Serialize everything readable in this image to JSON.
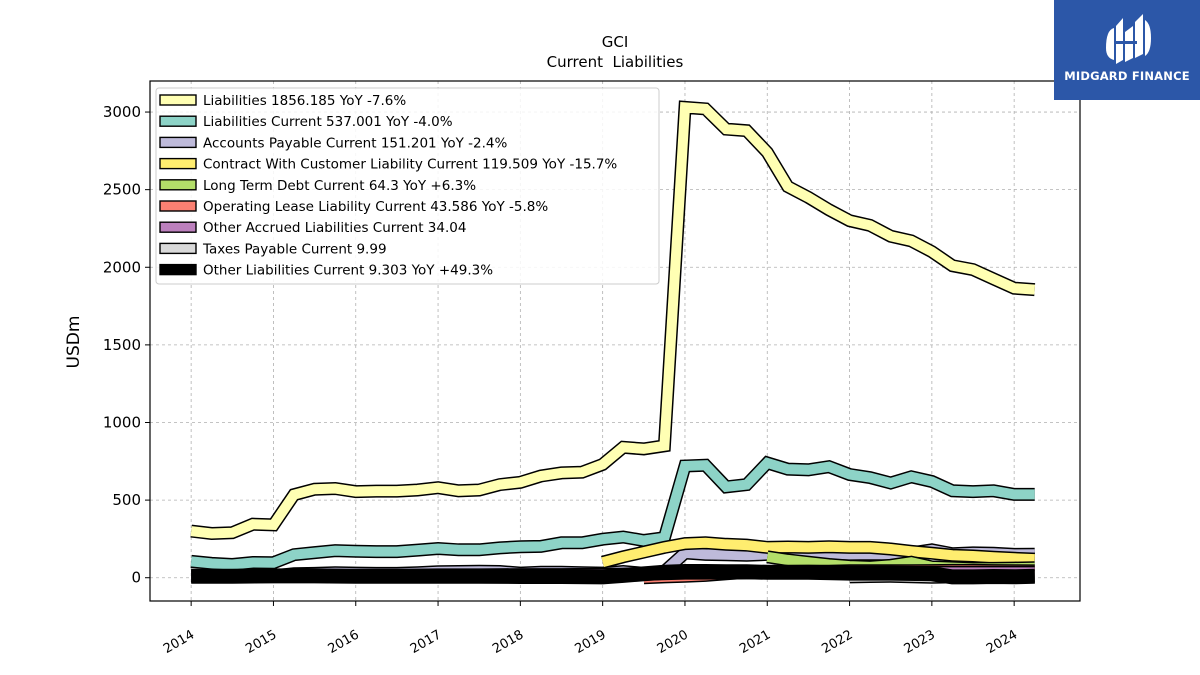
{
  "brand": {
    "name": "MIDGARD FINANCE",
    "logo_icon": "midgard-logo-icon",
    "background": "#2c57a8"
  },
  "chart_data": {
    "type": "line",
    "title": "GCI",
    "subtitle": "Current  Liabilities",
    "ylabel": "USDm",
    "xlabel": "",
    "ylim": [
      -150,
      3200
    ],
    "xlim": [
      2013.5,
      2024.8
    ],
    "yticks": [
      0,
      500,
      1000,
      1500,
      2000,
      2500,
      3000
    ],
    "xticks": [
      2014,
      2015,
      2016,
      2017,
      2018,
      2019,
      2020,
      2021,
      2022,
      2023,
      2024
    ],
    "grid": true,
    "legend_position": "top-left",
    "series": [
      {
        "name": "Liabilities  1856.185 YoY -7.6%",
        "color": "#ffffb3",
        "width": 10,
        "x": [
          2014.0,
          2014.25,
          2014.5,
          2014.75,
          2015.0,
          2015.25,
          2015.5,
          2015.75,
          2016.0,
          2016.25,
          2016.5,
          2016.75,
          2017.0,
          2017.25,
          2017.5,
          2017.75,
          2018.0,
          2018.25,
          2018.5,
          2018.75,
          2019.0,
          2019.25,
          2019.5,
          2019.75,
          2020.0,
          2020.25,
          2020.5,
          2020.75,
          2021.0,
          2021.25,
          2021.5,
          2021.75,
          2022.0,
          2022.25,
          2022.5,
          2022.75,
          2023.0,
          2023.25,
          2023.5,
          2023.75,
          2024.0,
          2024.25
        ],
        "y": [
          300,
          285,
          290,
          345,
          340,
          535,
          570,
          575,
          555,
          558,
          558,
          565,
          580,
          560,
          565,
          600,
          615,
          655,
          675,
          680,
          730,
          840,
          830,
          850,
          3030,
          3020,
          2890,
          2880,
          2740,
          2520,
          2450,
          2370,
          2300,
          2270,
          2200,
          2170,
          2100,
          2010,
          1985,
          1925,
          1865,
          1856
        ]
      },
      {
        "name": "Liabilities Current  537.001 YoY -4.0%",
        "color": "#8dd3c7",
        "width": 10,
        "x": [
          2014.0,
          2014.25,
          2014.5,
          2014.75,
          2015.0,
          2015.25,
          2015.5,
          2015.75,
          2016.0,
          2016.25,
          2016.5,
          2016.75,
          2017.0,
          2017.25,
          2017.5,
          2017.75,
          2018.0,
          2018.25,
          2018.5,
          2018.75,
          2019.0,
          2019.25,
          2019.5,
          2019.75,
          2020.0,
          2020.25,
          2020.5,
          2020.75,
          2021.0,
          2021.25,
          2021.5,
          2021.75,
          2022.0,
          2022.25,
          2022.5,
          2022.75,
          2023.0,
          2023.25,
          2023.5,
          2023.75,
          2024.0,
          2024.25
        ],
        "y": [
          105,
          92,
          85,
          98,
          97,
          148,
          162,
          175,
          170,
          168,
          168,
          178,
          188,
          180,
          180,
          192,
          200,
          202,
          225,
          225,
          248,
          262,
          240,
          258,
          720,
          725,
          585,
          600,
          740,
          700,
          695,
          715,
          665,
          645,
          610,
          650,
          620,
          560,
          555,
          560,
          537,
          537
        ]
      },
      {
        "name": "Accounts Payable Current  151.201 YoY -2.4%",
        "color": "#bebada",
        "width": 10,
        "x": [
          2014.0,
          2014.25,
          2014.5,
          2014.75,
          2015.0,
          2015.25,
          2015.5,
          2015.75,
          2016.0,
          2016.25,
          2016.5,
          2016.75,
          2017.0,
          2017.25,
          2017.5,
          2017.75,
          2018.0,
          2018.25,
          2018.5,
          2018.75,
          2019.0,
          2019.25,
          2019.5,
          2019.75,
          2020.0,
          2020.25,
          2020.5,
          2020.75,
          2021.0,
          2021.25,
          2021.5,
          2021.75,
          2022.0,
          2022.25,
          2022.5,
          2022.75,
          2023.0,
          2023.25,
          2023.5,
          2023.75,
          2024.0,
          2024.25
        ],
        "y": [
          15,
          12,
          10,
          14,
          12,
          25,
          28,
          32,
          30,
          28,
          28,
          32,
          38,
          40,
          42,
          40,
          30,
          35,
          35,
          32,
          30,
          40,
          28,
          40,
          160,
          150,
          148,
          145,
          150,
          150,
          145,
          155,
          150,
          152,
          150,
          160,
          180,
          155,
          160,
          158,
          150,
          151
        ]
      },
      {
        "name": "Contract With Customer Liability Current  119.509 YoY -15.7%",
        "color": "#ffed6f",
        "width": 10,
        "x": [
          2019.0,
          2019.25,
          2019.5,
          2019.75,
          2020.0,
          2020.25,
          2020.5,
          2020.75,
          2021.0,
          2021.25,
          2021.5,
          2021.75,
          2022.0,
          2022.25,
          2022.5,
          2022.75,
          2023.0,
          2023.25,
          2023.5,
          2023.75,
          2024.0,
          2024.25
        ],
        "y": [
          100,
          135,
          165,
          195,
          220,
          225,
          215,
          210,
          195,
          198,
          195,
          200,
          195,
          195,
          185,
          170,
          158,
          145,
          140,
          132,
          125,
          120
        ]
      },
      {
        "name": "Long Term Debt Current  64.3 YoY +6.3%",
        "color": "#b3de69",
        "width": 10,
        "x": [
          2021.0,
          2021.25,
          2021.5,
          2021.75,
          2022.0,
          2022.25,
          2022.5,
          2022.75,
          2023.0,
          2023.25,
          2023.5,
          2023.75,
          2024.0,
          2024.25
        ],
        "y": [
          135,
          115,
          100,
          85,
          75,
          70,
          80,
          100,
          70,
          65,
          60,
          60,
          62,
          64
        ]
      },
      {
        "name": "Operating Lease Liability Current  43.586 YoY -5.8%",
        "color": "#fb8072",
        "width": 10,
        "x": [
          2019.5,
          2019.75,
          2020.0,
          2020.25,
          2020.5,
          2020.75,
          2021.0,
          2021.25,
          2021.5,
          2021.75,
          2022.0,
          2022.25,
          2022.5,
          2022.75,
          2023.0,
          2023.25,
          2023.5,
          2023.75,
          2024.0,
          2024.25
        ],
        "y": [
          0,
          5,
          10,
          15,
          25,
          35,
          40,
          40,
          42,
          42,
          45,
          45,
          45,
          45,
          46,
          47,
          47,
          46,
          45,
          44
        ]
      },
      {
        "name": "Other Accrued Liabilities Current  34.04",
        "color": "#bc80bd",
        "width": 10,
        "x": [
          2014.0,
          2014.5,
          2015.0,
          2015.5,
          2016.0,
          2016.5,
          2017.0,
          2017.5,
          2018.0,
          2018.5,
          2019.0,
          2019.5,
          2020.0,
          2020.5,
          2021.0,
          2021.5,
          2022.0,
          2022.5,
          2023.0,
          2023.5,
          2024.0,
          2024.25
        ],
        "y": [
          10,
          10,
          12,
          12,
          15,
          15,
          18,
          18,
          20,
          20,
          22,
          22,
          30,
          30,
          32,
          32,
          34,
          34,
          34,
          34,
          34,
          34
        ]
      },
      {
        "name": "Taxes Payable Current  9.99",
        "color": "#d9d9d9",
        "width": 10,
        "x": [
          2022.0,
          2022.25,
          2022.5,
          2022.75,
          2023.0,
          2023.25,
          2023.5,
          2023.75,
          2024.0,
          2024.25
        ],
        "y": [
          5,
          8,
          10,
          6,
          3,
          5,
          8,
          10,
          10,
          10
        ]
      },
      {
        "name": "Other Liabilities Current  9.303 YoY +49.3%",
        "color": "#000000",
        "width": 12,
        "x": [
          2014.0,
          2014.5,
          2015.0,
          2015.5,
          2016.0,
          2016.5,
          2017.0,
          2017.5,
          2018.0,
          2018.5,
          2019.0,
          2019.25,
          2019.5,
          2019.75,
          2020.0,
          2020.25,
          2020.5,
          2020.75,
          2021.0,
          2021.5,
          2022.0,
          2022.5,
          2023.0,
          2023.25,
          2023.5,
          2023.75,
          2024.0,
          2024.25
        ],
        "y": [
          10,
          10,
          12,
          12,
          10,
          10,
          10,
          10,
          8,
          8,
          5,
          15,
          25,
          35,
          40,
          40,
          38,
          38,
          35,
          35,
          30,
          30,
          25,
          5,
          5,
          8,
          6,
          9
        ]
      }
    ]
  }
}
